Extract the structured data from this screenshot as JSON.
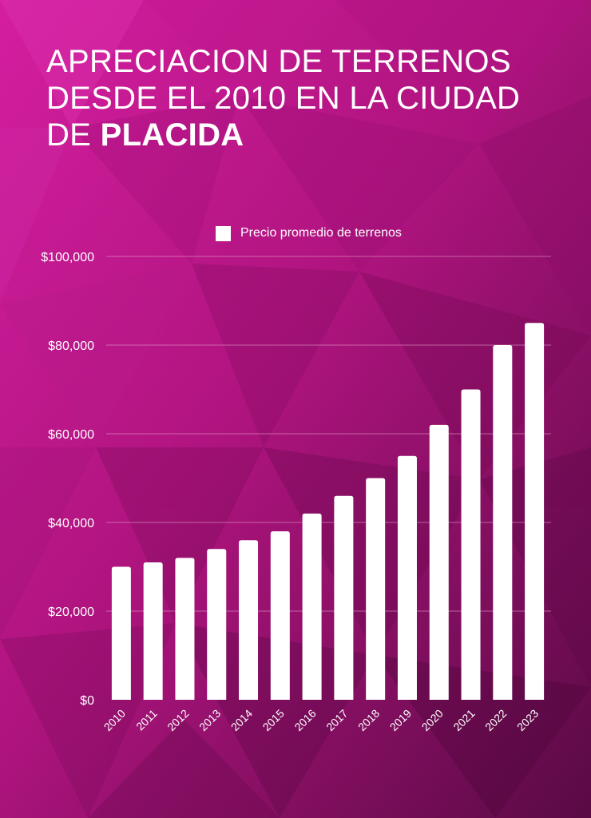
{
  "title": {
    "line1": "APRECIACION DE TERRENOS",
    "line2": "DESDE EL 2010 EN LA CIUDAD",
    "line3_prefix": "DE ",
    "line3_bold": "PLACIDA"
  },
  "colors": {
    "background": "#b0147f",
    "bar": "#ffffff",
    "gridline": "#e6a6cf"
  },
  "chart_data": {
    "type": "bar",
    "legend": "top-center",
    "series": [
      {
        "name": "Precio promedio de terrenos",
        "values": [
          30000,
          31000,
          32000,
          34000,
          36000,
          38000,
          42000,
          46000,
          50000,
          55000,
          62000,
          70000,
          80000,
          85000
        ]
      }
    ],
    "categories": [
      "2010",
      "2011",
      "2012",
      "2013",
      "2014",
      "2015",
      "2016",
      "2017",
      "2018",
      "2019",
      "2020",
      "2021",
      "2022",
      "2023"
    ],
    "ylim": [
      0,
      100000
    ],
    "yticks": [
      0,
      20000,
      40000,
      60000,
      80000,
      100000
    ],
    "ytick_labels": [
      "$0",
      "$20,000",
      "$40,000",
      "$60,000",
      "$80,000",
      "$100,000"
    ],
    "grid": true
  }
}
